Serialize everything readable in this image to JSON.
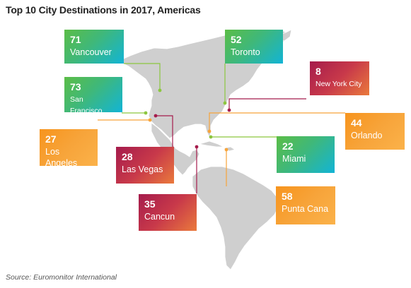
{
  "title": "Top 10 City Destinations in 2017, Americas",
  "source": "Source: Euromonitor International",
  "colors": {
    "land": "#cfcfcf",
    "border": "#ffffff",
    "green_card": "#3fb87a",
    "red_card": "#b8274b",
    "orange_card": "#f8a030",
    "leader_green": "#8cc63f",
    "leader_red": "#a51c4c",
    "leader_orange": "#f7a43a"
  },
  "destinations": [
    {
      "rank": "71",
      "city": "Vancouver",
      "style": "green"
    },
    {
      "rank": "52",
      "city": "Toronto",
      "style": "green"
    },
    {
      "rank": "8",
      "city": "New York City",
      "style": "red"
    },
    {
      "rank": "73",
      "city": "San Francisco",
      "style": "green"
    },
    {
      "rank": "44",
      "city": "Orlando",
      "style": "orange"
    },
    {
      "rank": "27",
      "city": "Los Angeles",
      "style": "orange"
    },
    {
      "rank": "22",
      "city": "Miami",
      "style": "green"
    },
    {
      "rank": "28",
      "city": "Las Vegas",
      "style": "red"
    },
    {
      "rank": "58",
      "city": "Punta Cana",
      "style": "orange"
    },
    {
      "rank": "35",
      "city": "Cancun",
      "style": "red"
    }
  ]
}
